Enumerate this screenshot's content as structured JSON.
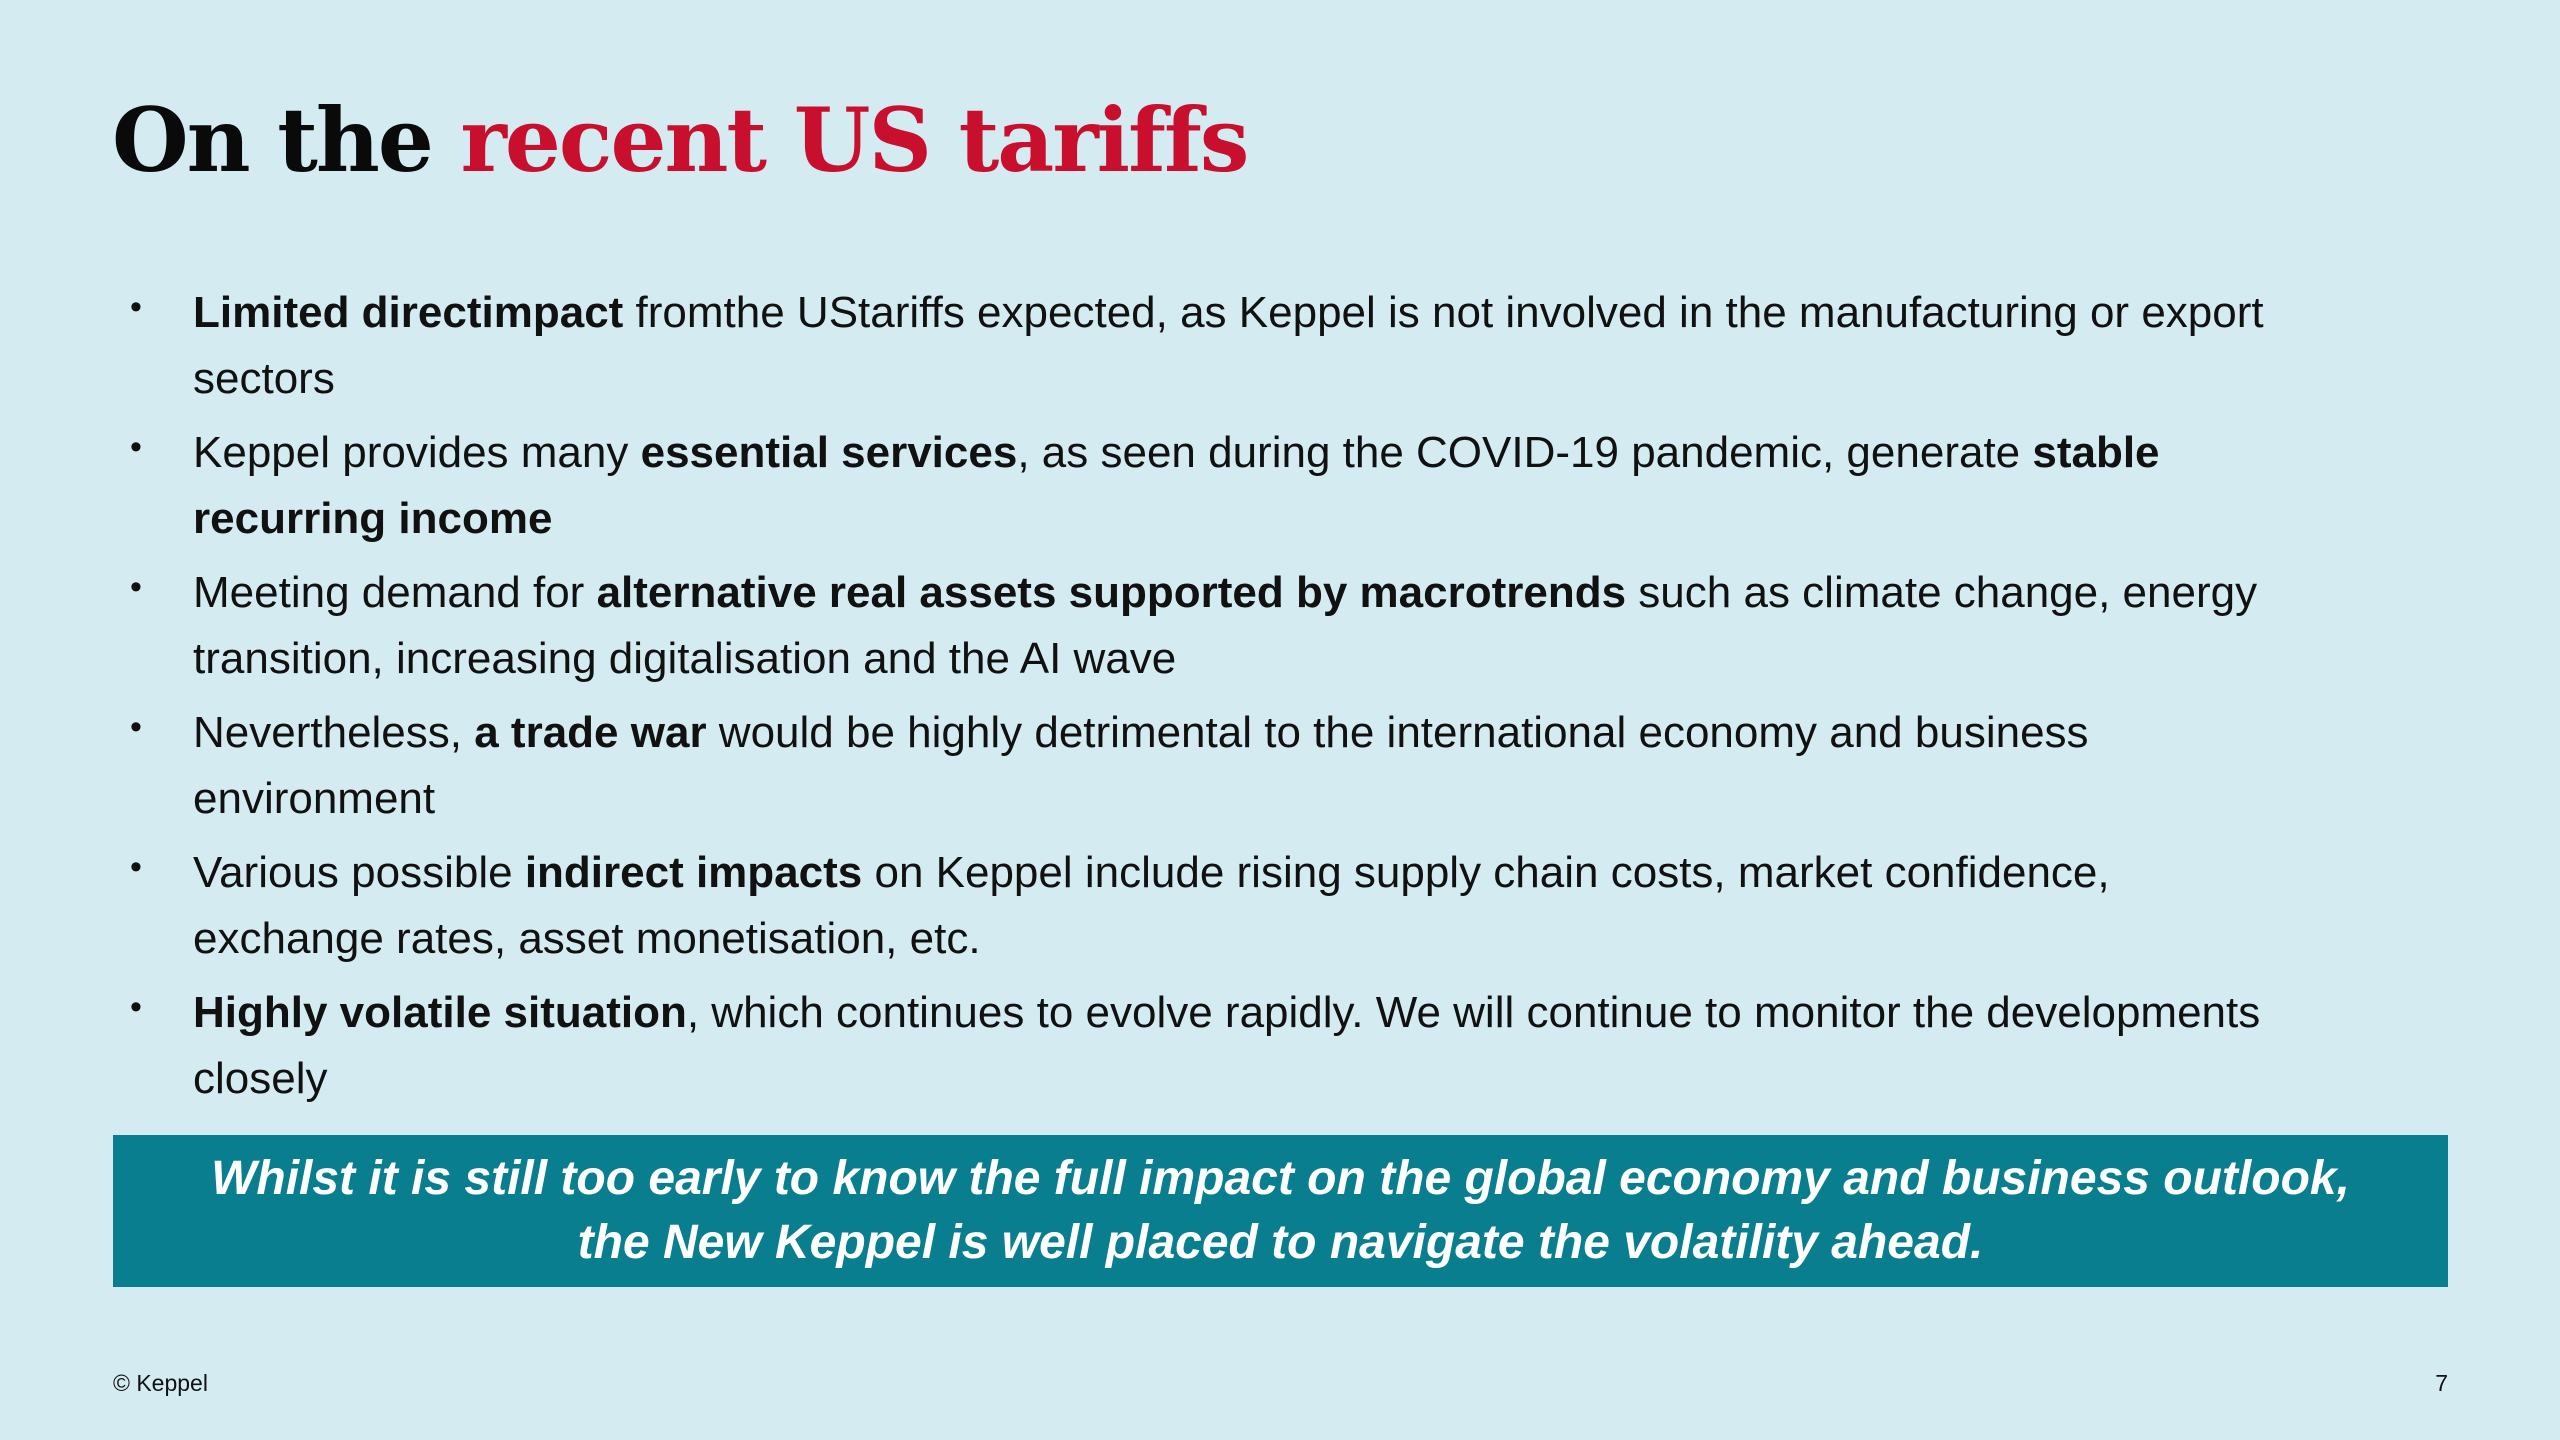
{
  "header": {
    "title": [
      {
        "text": "On the ",
        "color": "#0a0a0a"
      },
      {
        "text": "recent US tariffs",
        "color": "#c8102e"
      }
    ]
  },
  "bullets": [
    [
      {
        "text": "Limited directimpact",
        "bold": true
      },
      {
        "text": " fromthe UStariffs expected, as Keppel is not involved in the manufacturing or export sectors",
        "bold": false
      }
    ],
    [
      {
        "text": "Keppel provides many ",
        "bold": false
      },
      {
        "text": "essential services",
        "bold": true
      },
      {
        "text": ", as seen during the COVID-19 pandemic, generate ",
        "bold": false
      },
      {
        "text": "stable recurring income",
        "bold": true
      }
    ],
    [
      {
        "text": "Meeting demand for ",
        "bold": false
      },
      {
        "text": "alternative real assets supported by macrotrends",
        "bold": true
      },
      {
        "text": " such as climate change, energy transition, increasing digitalisation and the AI wave",
        "bold": false
      }
    ],
    [
      {
        "text": "Nevertheless, ",
        "bold": false
      },
      {
        "text": "a trade war",
        "bold": true
      },
      {
        "text": " would be highly detrimental to the international economy and business environment",
        "bold": false
      }
    ],
    [
      {
        "text": "Various possible ",
        "bold": false
      },
      {
        "text": "indirect impacts",
        "bold": true
      },
      {
        "text": " on Keppel include rising supply chain costs, market confidence, exchange rates, asset monetisation, etc.",
        "bold": false
      }
    ],
    [
      {
        "text": "Highly volatile situation",
        "bold": true
      },
      {
        "text": ", which continues to evolve rapidly. We will continue to monitor the developments closely",
        "bold": false
      }
    ]
  ],
  "callout": {
    "lines": [
      "Whilst it is still too early to know the full impact on the global economy and business outlook,",
      "the New Keppel is well placed to navigate the volatility ahead."
    ]
  },
  "footer": {
    "copyright": "© Keppel",
    "page": "7"
  }
}
